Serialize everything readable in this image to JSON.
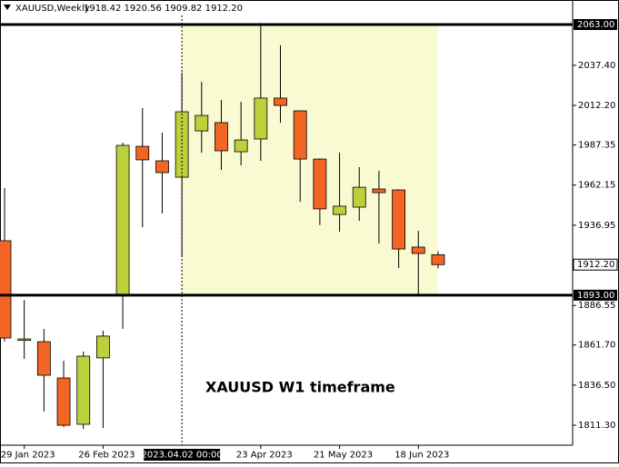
{
  "chart_data": {
    "type": "candlestick",
    "symbol_label": "XAUUSD,Weekly",
    "ohlc_label": "1918.42 1920.56 1909.82 1912.20",
    "annotation": "XAUUSD W1 timeframe",
    "categories": [
      null,
      "29 Jan 2023",
      null,
      null,
      null,
      "26 Feb 2023",
      null,
      null,
      null,
      "2023.04.02 00:00",
      null,
      null,
      null,
      "23 Apr 2023",
      null,
      null,
      null,
      "21 May 2023",
      null,
      null,
      null,
      "18 Jun 2023",
      null
    ],
    "highlight_category": "2023.04.02 00:00",
    "open": [
      1927.2,
      1864.6,
      1863.8,
      1841.0,
      1811.9,
      1853.6,
      1893.0,
      1986.5,
      1977.4,
      1967.1,
      1996.2,
      2001.4,
      1983.1,
      1991.1,
      2016.8,
      2008.8,
      1978.5,
      1943.7,
      1948.3,
      1959.7,
      1959.1,
      1923.2,
      1918.42
    ],
    "high": [
      1960.3,
      1890.1,
      1871.8,
      1851.8,
      1857.6,
      1870.7,
      1988.8,
      2010.5,
      1995.1,
      2032.8,
      2027.0,
      2015.6,
      2014.5,
      2064.0,
      2049.9,
      2009.0,
      1979.0,
      1982.5,
      1973.4,
      1971.1,
      1959.5,
      1933.4,
      1920.56
    ],
    "low": [
      1864.0,
      1853.0,
      1819.9,
      1810.2,
      1809.0,
      1809.6,
      1871.8,
      1935.7,
      1944.3,
      1917.5,
      1982.5,
      1971.7,
      1974.5,
      1977.4,
      2001.4,
      1951.7,
      1937.0,
      1932.9,
      1939.7,
      1925.4,
      1910.1,
      1893.0,
      1909.82
    ],
    "close": [
      1866.1,
      1865.5,
      1842.7,
      1811.3,
      1854.7,
      1867.3,
      1987.1,
      1978.0,
      1970.0,
      2008.2,
      2005.9,
      1983.7,
      1990.5,
      2016.8,
      2012.2,
      1978.5,
      1947.2,
      1948.9,
      1960.8,
      1957.4,
      1922.0,
      1919.2,
      1912.2
    ],
    "up_color": "#bcd03c",
    "down_color": "#f26522",
    "ylim": [
      1799,
      2069
    ],
    "yticks": [
      {
        "value": 2037.4,
        "label": "2037.40"
      },
      {
        "value": 2012.2,
        "label": "2012.20"
      },
      1987.35,
      1962.15,
      1936.95,
      1886.55,
      {
        "value": 1861.7,
        "label": "1861.70"
      },
      {
        "value": 1836.5,
        "label": "1836.50"
      },
      {
        "value": 1811.3,
        "label": "1811.30"
      }
    ],
    "hlines": [
      {
        "value": 2063,
        "label": "2063.00"
      },
      {
        "value": 1893,
        "label": "1893.00"
      }
    ],
    "price_marker": {
      "value": 1912.2,
      "label": "1912.20"
    },
    "zone": {
      "start": "2023.04.02 00:00",
      "low": 1893,
      "high": 2063,
      "color": "#f9f9d2"
    }
  }
}
